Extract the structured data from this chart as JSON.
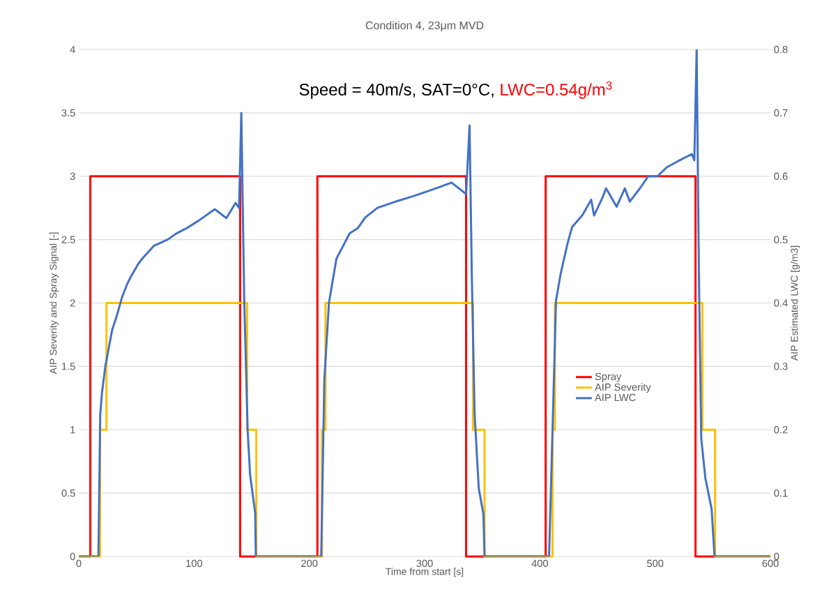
{
  "chart_data": {
    "type": "line",
    "title": "Condition 4, 23μm MVD",
    "xlabel": "Time from start [s]",
    "ylabel": "AIP Severity and Spray Signal [-]",
    "y2label": "AIP Estimated LWC [g/m3]",
    "annotations": [
      "Speed = 40m/s, SAT=0°C,",
      "LWC=0.54g/m$^{3}$"
    ],
    "xlim": [
      0,
      600
    ],
    "xticks": [
      0,
      100,
      200,
      300,
      400,
      500,
      600
    ],
    "ylim": [
      0,
      4
    ],
    "yticks": [
      0,
      0.5,
      1,
      1.5,
      2,
      2.5,
      3,
      3.5,
      4
    ],
    "y2lim": [
      0,
      0.8
    ],
    "y2ticks": [
      0,
      0.1,
      0.2,
      0.3,
      0.4,
      0.5,
      0.6,
      0.7,
      0.8
    ],
    "grid": "y",
    "legend": "right",
    "series": [
      {
        "name": "Spray",
        "color": "#ff0000",
        "x": [
          0,
          10,
          10,
          140,
          140,
          207,
          207,
          336,
          336,
          405,
          405,
          535,
          535,
          600
        ],
        "values": [
          0,
          0,
          3,
          3,
          0,
          0,
          3,
          3,
          0,
          0,
          3,
          3,
          0,
          0
        ]
      },
      {
        "name": "AIP Severity",
        "color": "#ffc000",
        "x": [
          0,
          18.5,
          18.5,
          24,
          24,
          146,
          146,
          154,
          154,
          211,
          211,
          214,
          214,
          342,
          342,
          352,
          352,
          411,
          411,
          413,
          413,
          541,
          541,
          552,
          552,
          600
        ],
        "values": [
          0,
          0,
          1,
          1,
          2,
          2,
          1,
          1,
          0,
          0,
          1,
          1,
          2,
          2,
          1,
          1,
          0,
          0,
          1,
          1,
          2,
          2,
          1,
          1,
          0,
          0
        ]
      },
      {
        "name": "AIP LWC",
        "color": "#4472c4",
        "axis": "y2",
        "x": [
          0,
          17,
          18.6,
          20,
          23,
          29,
          33,
          37.5,
          42,
          45,
          51,
          55,
          65,
          77,
          85,
          93.5,
          104,
          118,
          128,
          136,
          139,
          141,
          143.5,
          146.5,
          148.6,
          153,
          153.6,
          210.3,
          213,
          217,
          223.5,
          229,
          235,
          242,
          248.5,
          259,
          276.5,
          291,
          308.5,
          323.4,
          336,
          339,
          341,
          343.4,
          347,
          351,
          352,
          408,
          411,
          414,
          418,
          424,
          428,
          437,
          444.5,
          447,
          454.7,
          457.4,
          466.6,
          473.7,
          478,
          486.8,
          494,
          502,
          510,
          520,
          532,
          534,
          536,
          538,
          540,
          543.6,
          549,
          551.5,
          600
        ],
        "values": [
          0,
          0,
          0.224,
          0.256,
          0.3,
          0.358,
          0.38,
          0.409,
          0.43,
          0.441,
          0.46,
          0.47,
          0.49,
          0.5,
          0.51,
          0.518,
          0.53,
          0.548,
          0.534,
          0.558,
          0.55,
          0.7,
          0.406,
          0.198,
          0.129,
          0.069,
          0,
          0,
          0.278,
          0.4,
          0.47,
          0.489,
          0.51,
          0.518,
          0.535,
          0.55,
          0.561,
          0.569,
          0.58,
          0.59,
          0.572,
          0.68,
          0.438,
          0.224,
          0.107,
          0.067,
          0,
          0,
          0.202,
          0.404,
          0.446,
          0.494,
          0.52,
          0.539,
          0.563,
          0.538,
          0.568,
          0.581,
          0.552,
          0.581,
          0.56,
          0.581,
          0.6,
          0.6,
          0.614,
          0.624,
          0.635,
          0.625,
          0.8,
          0.44,
          0.186,
          0.123,
          0.075,
          0,
          0
        ]
      }
    ]
  }
}
